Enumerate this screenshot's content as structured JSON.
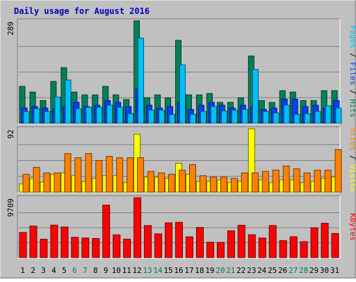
{
  "title": "Daily usage for August 2016",
  "colors": {
    "background": "#c0c0c0",
    "text_title": "#0000c0",
    "hits": "#00805c",
    "files": "#0040ff",
    "pages": "#00c0ff",
    "visits": "#ffff00",
    "sites": "#ff8000",
    "kbytes": "#ff0000",
    "weekend_label": "#00805c",
    "weekday_label": "#000000"
  },
  "chart_data": [
    {
      "type": "bar",
      "panel": "hits-files-pages",
      "max_label": "289",
      "ylim": [
        0,
        289
      ],
      "side_labels": [
        {
          "text": "Pages",
          "color_key": "pages"
        },
        {
          "text": "Files",
          "color_key": "files"
        },
        {
          "text": "Hits",
          "color_key": "hits"
        }
      ],
      "separator": " / ",
      "categories": [
        "1",
        "2",
        "3",
        "4",
        "5",
        "6",
        "7",
        "8",
        "9",
        "10",
        "11",
        "12",
        "13",
        "14",
        "15",
        "16",
        "17",
        "18",
        "19",
        "20",
        "21",
        "22",
        "23",
        "24",
        "25",
        "26",
        "27",
        "28",
        "29",
        "30",
        "31"
      ],
      "series": [
        {
          "name": "Hits",
          "color_key": "hits",
          "values": [
            104,
            88,
            64,
            118,
            157,
            88,
            80,
            80,
            104,
            80,
            67,
            289,
            72,
            80,
            72,
            234,
            80,
            80,
            84,
            59,
            59,
            72,
            190,
            64,
            59,
            92,
            88,
            64,
            64,
            92,
            92
          ]
        },
        {
          "name": "Files",
          "color_key": "files",
          "values": [
            43,
            47,
            43,
            39,
            47,
            59,
            47,
            51,
            64,
            59,
            47,
            97,
            51,
            43,
            47,
            59,
            39,
            51,
            59,
            51,
            43,
            51,
            47,
            39,
            43,
            68,
            68,
            47,
            51,
            43,
            64
          ]
        },
        {
          "name": "Pages",
          "color_key": "pages",
          "values": [
            33,
            41,
            33,
            74,
            122,
            41,
            45,
            45,
            51,
            45,
            27,
            240,
            37,
            37,
            25,
            165,
            25,
            33,
            47,
            35,
            37,
            39,
            152,
            33,
            29,
            51,
            25,
            27,
            33,
            49,
            43
          ]
        }
      ]
    },
    {
      "type": "bar",
      "panel": "visits-sites",
      "max_label": "92",
      "ylim": [
        0,
        92
      ],
      "side_labels": [
        {
          "text": "Sites",
          "color_key": "sites"
        },
        {
          "text": "Visits",
          "color_key": "visits"
        }
      ],
      "separator": " / ",
      "categories": [
        "1",
        "2",
        "3",
        "4",
        "5",
        "6",
        "7",
        "8",
        "9",
        "10",
        "11",
        "12",
        "13",
        "14",
        "15",
        "16",
        "17",
        "18",
        "19",
        "20",
        "21",
        "22",
        "23",
        "24",
        "25",
        "26",
        "27",
        "28",
        "29",
        "30",
        "31"
      ],
      "series": [
        {
          "name": "Visits",
          "color_key": "visits",
          "values": [
            12,
            20,
            15,
            26,
            28,
            24,
            16,
            20,
            24,
            24,
            14,
            84,
            22,
            22,
            20,
            42,
            26,
            16,
            16,
            18,
            14,
            16,
            92,
            18,
            14,
            18,
            18,
            14,
            16,
            20,
            22
          ]
        },
        {
          "name": "Sites",
          "color_key": "sites",
          "values": [
            26,
            36,
            28,
            28,
            56,
            50,
            56,
            46,
            52,
            50,
            50,
            50,
            30,
            28,
            26,
            32,
            40,
            24,
            22,
            22,
            20,
            28,
            28,
            30,
            32,
            38,
            34,
            28,
            32,
            32,
            62
          ]
        }
      ]
    },
    {
      "type": "bar",
      "panel": "kbytes",
      "max_label": "9709",
      "ylim": [
        0,
        9709
      ],
      "side_labels": [
        {
          "text": "KBytes",
          "color_key": "kbytes"
        }
      ],
      "separator": "",
      "categories": [
        "1",
        "2",
        "3",
        "4",
        "5",
        "6",
        "7",
        "8",
        "9",
        "10",
        "11",
        "12",
        "13",
        "14",
        "15",
        "16",
        "17",
        "18",
        "19",
        "20",
        "21",
        "22",
        "23",
        "24",
        "25",
        "26",
        "27",
        "28",
        "29",
        "30",
        "31"
      ],
      "series": [
        {
          "name": "KBytes",
          "color_key": "kbytes",
          "values": [
            4070,
            5110,
            2990,
            5270,
            4970,
            3300,
            3180,
            3100,
            8510,
            3690,
            3000,
            9709,
            5210,
            3860,
            5640,
            5720,
            3380,
            4900,
            2490,
            2470,
            4360,
            5250,
            3710,
            3170,
            5200,
            2750,
            3390,
            2590,
            4840,
            5580,
            3920
          ]
        }
      ]
    }
  ],
  "day_labels": [
    {
      "text": "1",
      "weekend": false
    },
    {
      "text": "2",
      "weekend": false
    },
    {
      "text": "3",
      "weekend": false
    },
    {
      "text": "4",
      "weekend": false
    },
    {
      "text": "5",
      "weekend": false
    },
    {
      "text": "6",
      "weekend": true
    },
    {
      "text": "7",
      "weekend": true
    },
    {
      "text": "8",
      "weekend": false
    },
    {
      "text": "9",
      "weekend": false
    },
    {
      "text": "10",
      "weekend": false
    },
    {
      "text": "11",
      "weekend": false
    },
    {
      "text": "12",
      "weekend": false
    },
    {
      "text": "13",
      "weekend": true
    },
    {
      "text": "14",
      "weekend": true
    },
    {
      "text": "15",
      "weekend": false
    },
    {
      "text": "16",
      "weekend": false
    },
    {
      "text": "17",
      "weekend": false
    },
    {
      "text": "18",
      "weekend": false
    },
    {
      "text": "19",
      "weekend": false
    },
    {
      "text": "20",
      "weekend": true
    },
    {
      "text": "21",
      "weekend": true
    },
    {
      "text": "22",
      "weekend": false
    },
    {
      "text": "23",
      "weekend": false
    },
    {
      "text": "24",
      "weekend": false
    },
    {
      "text": "25",
      "weekend": false
    },
    {
      "text": "26",
      "weekend": false
    },
    {
      "text": "27",
      "weekend": true
    },
    {
      "text": "28",
      "weekend": true
    },
    {
      "text": "29",
      "weekend": false
    },
    {
      "text": "30",
      "weekend": false
    },
    {
      "text": "31",
      "weekend": false
    }
  ]
}
